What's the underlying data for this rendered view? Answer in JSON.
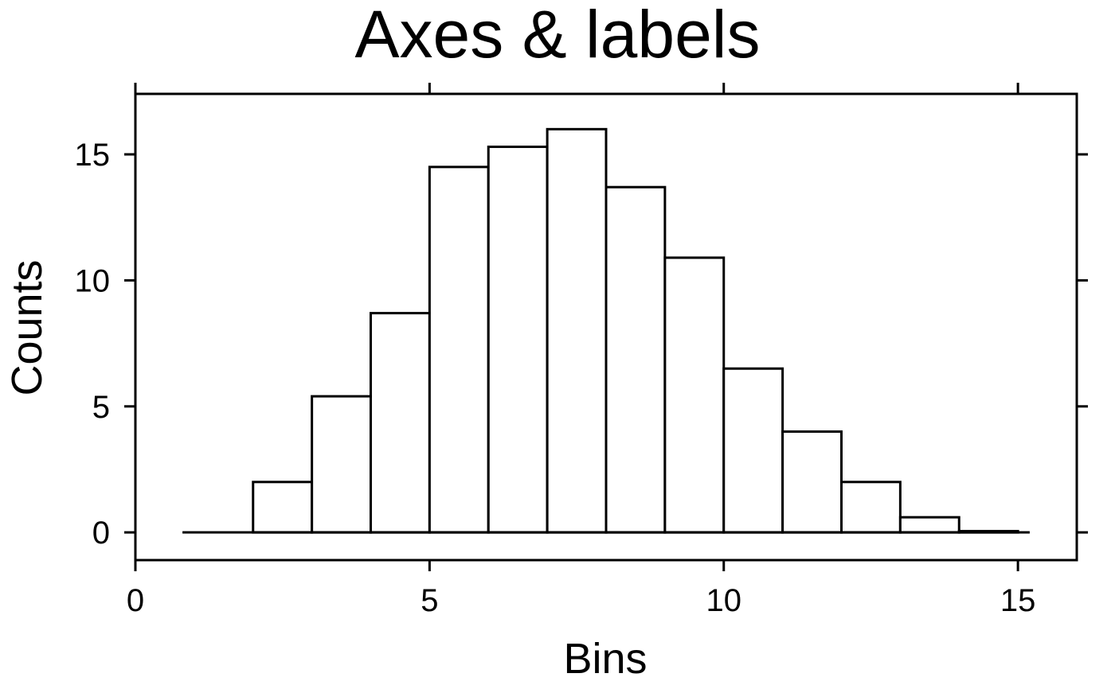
{
  "chart_data": {
    "type": "bar",
    "title": "Axes & labels",
    "xlabel": "Bins",
    "ylabel": "Counts",
    "xlim": [
      0,
      16
    ],
    "ylim": [
      -1.1,
      17.4
    ],
    "xticks": [
      0,
      5,
      10,
      15
    ],
    "yticks": [
      0,
      5,
      10,
      15
    ],
    "baseline": {
      "from": 0.8,
      "to": 15.2,
      "value": 0
    },
    "bins": [
      {
        "start": 2,
        "end": 3,
        "value": 2.0
      },
      {
        "start": 3,
        "end": 4,
        "value": 5.4
      },
      {
        "start": 4,
        "end": 5,
        "value": 8.7
      },
      {
        "start": 5,
        "end": 6,
        "value": 14.5
      },
      {
        "start": 6,
        "end": 7,
        "value": 15.3
      },
      {
        "start": 7,
        "end": 8,
        "value": 16.0
      },
      {
        "start": 8,
        "end": 9,
        "value": 13.7
      },
      {
        "start": 9,
        "end": 10,
        "value": 10.9
      },
      {
        "start": 10,
        "end": 11,
        "value": 6.5
      },
      {
        "start": 11,
        "end": 12,
        "value": 4.0
      },
      {
        "start": 12,
        "end": 13,
        "value": 2.0
      },
      {
        "start": 13,
        "end": 14,
        "value": 0.6
      },
      {
        "start": 14,
        "end": 15,
        "value": 0.05
      }
    ],
    "grid": false,
    "legend": "none"
  }
}
